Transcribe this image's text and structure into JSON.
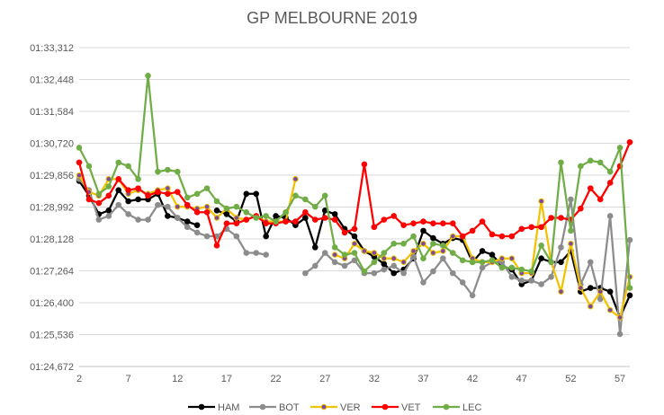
{
  "chart_data": {
    "type": "line",
    "title": "GP MELBOURNE 2019",
    "xlabel": "",
    "ylabel": "",
    "xlim": [
      2,
      58
    ],
    "ylim": [
      84.672,
      93.312
    ],
    "y_ticks": [
      84.672,
      85.536,
      86.4,
      87.264,
      88.128,
      88.992,
      89.856,
      90.72,
      91.584,
      92.448,
      93.312
    ],
    "y_tick_labels": [
      "01:24,672",
      "01:25,536",
      "01:26,400",
      "01:27,264",
      "01:28,128",
      "01:28,992",
      "01:29,856",
      "01:30,720",
      "01:31,584",
      "01:32,448",
      "01:33,312"
    ],
    "x_ticks": [
      2,
      7,
      12,
      17,
      22,
      27,
      32,
      37,
      42,
      47,
      52,
      57
    ],
    "grid": "horizontal",
    "legend_position": "bottom",
    "series": [
      {
        "name": "HAM",
        "color": "#000000",
        "marker_fill": "#000000",
        "x": [
          2,
          3,
          4,
          5,
          6,
          7,
          8,
          9,
          10,
          11,
          12,
          13,
          14,
          16,
          17,
          18,
          19,
          20,
          21,
          22,
          23,
          24,
          25,
          26,
          27,
          28,
          29,
          30,
          31,
          32,
          33,
          34,
          35,
          36,
          37,
          38,
          39,
          40,
          41,
          42,
          43,
          44,
          45,
          46,
          47,
          48,
          49,
          50,
          51,
          52,
          53,
          54,
          55,
          56,
          57,
          58
        ],
        "y": [
          89.7,
          89.3,
          88.8,
          88.9,
          89.45,
          89.15,
          89.2,
          89.2,
          89.35,
          88.75,
          88.7,
          88.6,
          88.5,
          88.9,
          88.8,
          88.6,
          89.35,
          89.35,
          88.2,
          88.75,
          88.7,
          88.5,
          88.7,
          87.9,
          88.9,
          88.8,
          88.4,
          88.2,
          87.8,
          87.65,
          87.45,
          87.2,
          87.3,
          87.6,
          88.35,
          88.15,
          88.0,
          88.15,
          88.1,
          87.5,
          87.8,
          87.7,
          87.4,
          87.3,
          86.9,
          87.0,
          87.6,
          87.5,
          87.5,
          87.8,
          86.7,
          86.8,
          86.8,
          86.7,
          86.0,
          86.6
        ]
      },
      {
        "name": "BOT",
        "color": "#8c8c8c",
        "marker_fill": "#8c8c8c",
        "x": [
          2,
          3,
          4,
          5,
          6,
          7,
          8,
          9,
          10,
          11,
          12,
          13,
          14,
          15,
          16,
          17,
          18,
          19,
          20,
          21,
          25,
          26,
          27,
          28,
          29,
          30,
          31,
          32,
          33,
          34,
          35,
          36,
          37,
          38,
          39,
          40,
          41,
          42,
          43,
          44,
          45,
          46,
          47,
          48,
          49,
          50,
          51,
          52,
          53,
          54,
          55,
          56,
          57,
          58
        ],
        "y": [
          89.75,
          89.45,
          88.65,
          88.75,
          89.05,
          88.8,
          88.65,
          88.65,
          89.05,
          89.0,
          88.7,
          88.45,
          88.3,
          88.2,
          88.2,
          88.4,
          88.2,
          87.75,
          87.75,
          87.7,
          87.2,
          87.4,
          87.75,
          87.5,
          87.4,
          87.55,
          87.2,
          87.2,
          87.3,
          87.4,
          87.2,
          87.65,
          86.95,
          87.25,
          87.6,
          87.2,
          86.95,
          86.6,
          87.35,
          87.5,
          87.5,
          87.1,
          87.0,
          87.0,
          86.9,
          87.1,
          87.9,
          89.2,
          86.9,
          87.5,
          86.5,
          88.75,
          85.55,
          88.1
        ]
      },
      {
        "name": "VER",
        "color": "#f2c200",
        "marker_fill": "#7b4a9c",
        "x": [
          2,
          3,
          4,
          5,
          6,
          7,
          8,
          9,
          10,
          11,
          12,
          13,
          14,
          15,
          16,
          17,
          18,
          19,
          20,
          21,
          22,
          23,
          24,
          28,
          29,
          30,
          31,
          32,
          33,
          34,
          35,
          36,
          37,
          38,
          39,
          40,
          41,
          42,
          43,
          44,
          45,
          46,
          47,
          48,
          49,
          50,
          51,
          52,
          53,
          54,
          55,
          56,
          57,
          58
        ],
        "y": [
          89.85,
          89.4,
          89.3,
          89.75,
          89.75,
          89.35,
          89.45,
          89.35,
          89.45,
          89.5,
          89.0,
          89.0,
          88.95,
          89.0,
          88.7,
          88.95,
          88.7,
          88.65,
          88.75,
          88.6,
          88.6,
          88.6,
          89.75,
          87.7,
          87.6,
          88.0,
          87.8,
          87.75,
          87.6,
          87.6,
          87.5,
          87.8,
          88.0,
          87.75,
          87.8,
          88.2,
          88.2,
          87.6,
          87.5,
          87.5,
          87.6,
          87.6,
          87.2,
          87.2,
          89.15,
          87.5,
          86.7,
          88.0,
          86.8,
          86.3,
          86.7,
          86.2,
          86.0,
          87.1
        ]
      },
      {
        "name": "VET",
        "color": "#ff0000",
        "marker_fill": "#ff0000",
        "x": [
          2,
          3,
          4,
          5,
          6,
          7,
          8,
          9,
          10,
          11,
          12,
          13,
          14,
          15,
          16,
          17,
          18,
          19,
          20,
          21,
          22,
          23,
          24,
          25,
          26,
          27,
          28,
          29,
          30,
          31,
          32,
          33,
          34,
          35,
          36,
          37,
          38,
          39,
          40,
          41,
          42,
          43,
          44,
          45,
          46,
          47,
          48,
          49,
          50,
          51,
          52,
          53,
          54,
          55,
          56,
          57,
          58
        ],
        "y": [
          90.2,
          89.2,
          89.1,
          89.3,
          89.75,
          89.45,
          89.5,
          89.3,
          89.4,
          89.35,
          89.4,
          89.05,
          88.85,
          88.85,
          87.95,
          88.55,
          88.55,
          88.65,
          88.75,
          88.55,
          88.55,
          88.6,
          88.6,
          88.85,
          88.65,
          88.7,
          88.65,
          88.3,
          88.4,
          90.15,
          88.45,
          88.65,
          88.75,
          88.5,
          88.55,
          88.6,
          88.55,
          88.55,
          88.55,
          88.2,
          88.35,
          88.6,
          88.25,
          88.2,
          88.2,
          88.4,
          88.45,
          88.45,
          88.7,
          88.7,
          88.65,
          88.95,
          89.5,
          89.2,
          89.65,
          90.1,
          90.75
        ]
      },
      {
        "name": "LEC",
        "color": "#70ad47",
        "marker_fill": "#70ad47",
        "x": [
          2,
          3,
          4,
          5,
          6,
          7,
          8,
          9,
          10,
          11,
          12,
          13,
          14,
          15,
          16,
          17,
          18,
          19,
          20,
          21,
          22,
          23,
          24,
          25,
          26,
          27,
          28,
          29,
          30,
          31,
          32,
          33,
          34,
          35,
          36,
          37,
          38,
          39,
          40,
          41,
          42,
          43,
          44,
          45,
          46,
          47,
          48,
          49,
          50,
          51,
          52,
          53,
          54,
          55,
          56,
          57,
          58
        ],
        "y": [
          90.6,
          90.1,
          89.35,
          89.55,
          90.2,
          90.1,
          89.75,
          92.55,
          89.95,
          90.0,
          89.95,
          89.25,
          89.35,
          89.5,
          89.15,
          88.95,
          89.0,
          88.85,
          88.7,
          88.75,
          88.6,
          88.85,
          89.3,
          89.2,
          89.0,
          89.3,
          87.9,
          87.7,
          87.75,
          87.25,
          87.5,
          87.75,
          88.0,
          88.0,
          88.2,
          87.6,
          88.0,
          87.95,
          87.75,
          87.55,
          87.5,
          87.5,
          87.55,
          87.35,
          87.35,
          87.3,
          87.25,
          87.95,
          87.5,
          90.2,
          88.35,
          90.1,
          90.25,
          90.2,
          89.95,
          90.6,
          86.8
        ]
      }
    ]
  }
}
